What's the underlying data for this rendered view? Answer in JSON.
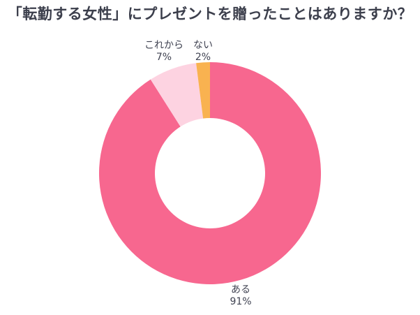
{
  "title": "「転勤する女性」にプレゼントを贈ったことはありますか？",
  "chart_data": {
    "type": "pie",
    "subtype": "donut",
    "title": "「転勤する女性」にプレゼントを贈ったことはありますか？",
    "categories": [
      "ある",
      "これから",
      "ない"
    ],
    "values": [
      91,
      7,
      2
    ],
    "unit": "%",
    "colors": [
      "#f7678f",
      "#fdd3e1",
      "#f9b250"
    ],
    "start_angle": "12 o'clock, clockwise",
    "legend": "none (labels placed beside slices)",
    "labels": [
      {
        "name": "ある",
        "value": "91%"
      },
      {
        "name": "これから",
        "value": "7%"
      },
      {
        "name": "ない",
        "value": "2%"
      }
    ]
  }
}
